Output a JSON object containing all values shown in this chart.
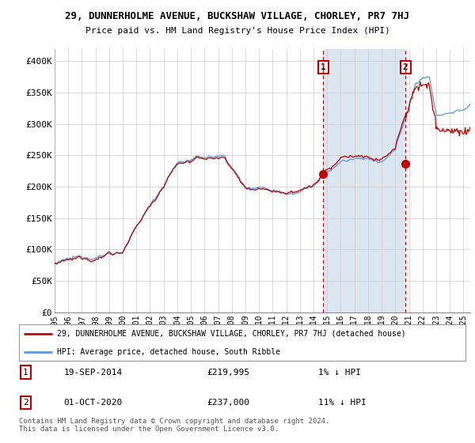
{
  "title": "29, DUNNERHOLME AVENUE, BUCKSHAW VILLAGE, CHORLEY, PR7 7HJ",
  "subtitle": "Price paid vs. HM Land Registry's House Price Index (HPI)",
  "legend_line1": "29, DUNNERHOLME AVENUE, BUCKSHAW VILLAGE, CHORLEY, PR7 7HJ (detached house)",
  "legend_line2": "HPI: Average price, detached house, South Ribble",
  "annotation1_date": "19-SEP-2014",
  "annotation1_price": "£219,995",
  "annotation1_hpi": "1% ↓ HPI",
  "annotation2_date": "01-OCT-2020",
  "annotation2_price": "£237,000",
  "annotation2_hpi": "11% ↓ HPI",
  "footer": "Contains HM Land Registry data © Crown copyright and database right 2024.\nThis data is licensed under the Open Government Licence v3.0.",
  "ylim": [
    0,
    420000
  ],
  "yticks": [
    0,
    50000,
    100000,
    150000,
    200000,
    250000,
    300000,
    350000,
    400000
  ],
  "ytick_labels": [
    "£0",
    "£50K",
    "£100K",
    "£150K",
    "£200K",
    "£250K",
    "£300K",
    "£350K",
    "£400K"
  ],
  "hpi_color": "#5b9bd5",
  "price_color": "#c00000",
  "shade_color": "#dce6f1",
  "marker1_year": 2014.72,
  "marker1_value": 219995,
  "marker2_year": 2020.75,
  "marker2_value": 237000,
  "background_color": "#ffffff",
  "grid_color": "#cccccc",
  "xstart": 1995,
  "xend": 2025.5
}
